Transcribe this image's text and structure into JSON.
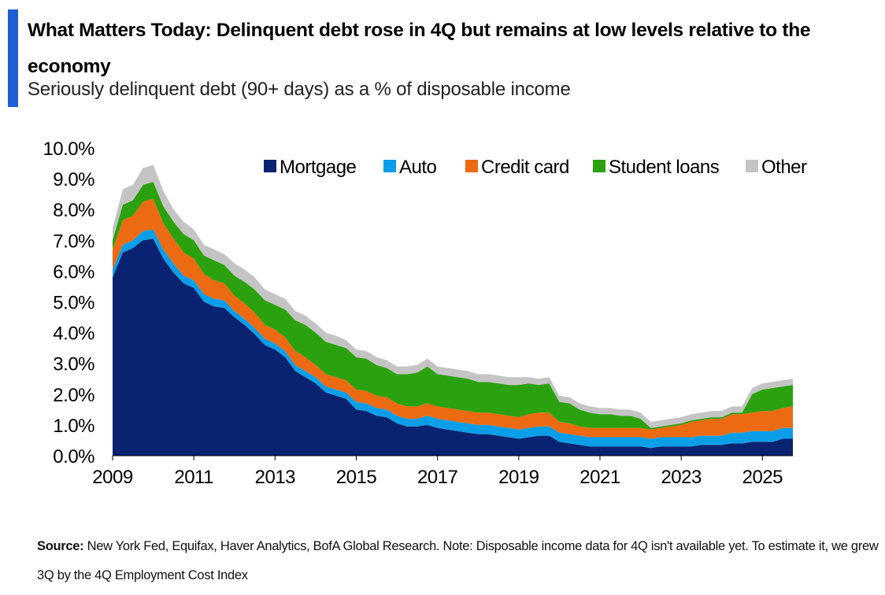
{
  "header": {
    "accent_color": "#1e5fd6",
    "title": "What Matters Today: Delinquent debt rose in 4Q but remains at low levels relative to the economy",
    "subtitle": "Seriously delinquent debt (90+ days) as a % of disposable income"
  },
  "footer": {
    "source_label": "Source:",
    "source_text": "New York Fed, Equifax, Haver Analytics, BofA Global Research. Note: Disposable income data for 4Q isn't available yet. To estimate it, we grew 3Q by the 4Q Employment Cost Index"
  },
  "chart_data": {
    "type": "area",
    "stacked": true,
    "title": "Seriously delinquent debt (90+ days) as a % of disposable income",
    "xlabel": "",
    "ylabel": "",
    "frequency": "quarterly",
    "x_start": 2009.0,
    "x_step": 0.25,
    "xlim": [
      2009.0,
      2025.75
    ],
    "ylim": [
      0,
      10
    ],
    "x_ticks": [
      2009,
      2011,
      2013,
      2015,
      2017,
      2019,
      2021,
      2023,
      2025
    ],
    "y_ticks": [
      "0.0%",
      "1.0%",
      "2.0%",
      "3.0%",
      "4.0%",
      "5.0%",
      "6.0%",
      "7.0%",
      "8.0%",
      "9.0%",
      "10.0%"
    ],
    "y_tick_values": [
      0,
      1,
      2,
      3,
      4,
      5,
      6,
      7,
      8,
      9,
      10
    ],
    "grid": false,
    "legend_position": "top-right",
    "series": [
      {
        "name": "Mortgage",
        "color": "#0a2370",
        "values": [
          5.8,
          6.6,
          6.75,
          7.0,
          7.05,
          6.4,
          5.95,
          5.6,
          5.45,
          5.0,
          4.85,
          4.8,
          4.5,
          4.25,
          3.95,
          3.6,
          3.45,
          3.2,
          2.75,
          2.55,
          2.35,
          2.05,
          1.95,
          1.85,
          1.5,
          1.45,
          1.3,
          1.25,
          1.05,
          0.95,
          0.95,
          1.0,
          0.9,
          0.85,
          0.8,
          0.75,
          0.7,
          0.7,
          0.65,
          0.6,
          0.55,
          0.6,
          0.65,
          0.65,
          0.45,
          0.4,
          0.35,
          0.3,
          0.3,
          0.3,
          0.3,
          0.3,
          0.3,
          0.25,
          0.3,
          0.3,
          0.3,
          0.3,
          0.35,
          0.35,
          0.35,
          0.4,
          0.4,
          0.45,
          0.45,
          0.45,
          0.55,
          0.55
        ]
      },
      {
        "name": "Auto",
        "color": "#0b9ee8",
        "values": [
          0.25,
          0.25,
          0.25,
          0.3,
          0.3,
          0.3,
          0.3,
          0.25,
          0.25,
          0.25,
          0.25,
          0.25,
          0.2,
          0.2,
          0.2,
          0.2,
          0.2,
          0.2,
          0.2,
          0.2,
          0.2,
          0.2,
          0.2,
          0.2,
          0.25,
          0.25,
          0.25,
          0.25,
          0.25,
          0.25,
          0.25,
          0.3,
          0.3,
          0.3,
          0.3,
          0.3,
          0.3,
          0.3,
          0.3,
          0.3,
          0.3,
          0.3,
          0.3,
          0.3,
          0.3,
          0.3,
          0.3,
          0.3,
          0.3,
          0.3,
          0.3,
          0.3,
          0.3,
          0.3,
          0.3,
          0.3,
          0.3,
          0.3,
          0.3,
          0.3,
          0.3,
          0.35,
          0.35,
          0.35,
          0.35,
          0.35,
          0.35,
          0.35
        ]
      },
      {
        "name": "Credit card",
        "color": "#ec6a12",
        "values": [
          0.65,
          0.8,
          0.8,
          0.95,
          1.0,
          0.85,
          0.8,
          0.75,
          0.7,
          0.65,
          0.6,
          0.55,
          0.5,
          0.5,
          0.5,
          0.45,
          0.45,
          0.45,
          0.45,
          0.45,
          0.4,
          0.4,
          0.4,
          0.4,
          0.4,
          0.4,
          0.4,
          0.4,
          0.4,
          0.4,
          0.4,
          0.4,
          0.4,
          0.4,
          0.4,
          0.4,
          0.4,
          0.4,
          0.4,
          0.4,
          0.4,
          0.45,
          0.45,
          0.45,
          0.35,
          0.35,
          0.3,
          0.3,
          0.3,
          0.3,
          0.3,
          0.3,
          0.3,
          0.3,
          0.3,
          0.35,
          0.4,
          0.5,
          0.5,
          0.55,
          0.55,
          0.6,
          0.6,
          0.6,
          0.65,
          0.65,
          0.65,
          0.7
        ]
      },
      {
        "name": "Student loans",
        "color": "#2ca10f",
        "values": [
          0.3,
          0.5,
          0.5,
          0.55,
          0.55,
          0.55,
          0.55,
          0.6,
          0.6,
          0.6,
          0.65,
          0.6,
          0.65,
          0.7,
          0.75,
          0.8,
          0.8,
          0.9,
          1.0,
          1.05,
          1.05,
          1.05,
          1.05,
          1.05,
          1.05,
          1.05,
          1.0,
          0.95,
          0.95,
          1.05,
          1.1,
          1.2,
          1.05,
          1.05,
          1.05,
          1.05,
          1.0,
          1.0,
          1.0,
          1.0,
          1.05,
          1.0,
          0.9,
          0.95,
          0.65,
          0.65,
          0.55,
          0.5,
          0.45,
          0.45,
          0.4,
          0.4,
          0.3,
          0.05,
          0.05,
          0.05,
          0.05,
          0.05,
          0.05,
          0.05,
          0.05,
          0.05,
          0.05,
          0.6,
          0.7,
          0.75,
          0.7,
          0.7
        ]
      },
      {
        "name": "Other",
        "color": "#c4c4c4",
        "values": [
          0.4,
          0.5,
          0.5,
          0.55,
          0.55,
          0.5,
          0.4,
          0.4,
          0.35,
          0.35,
          0.35,
          0.35,
          0.4,
          0.4,
          0.4,
          0.35,
          0.35,
          0.35,
          0.3,
          0.3,
          0.3,
          0.3,
          0.3,
          0.25,
          0.25,
          0.25,
          0.25,
          0.25,
          0.25,
          0.25,
          0.25,
          0.25,
          0.25,
          0.25,
          0.25,
          0.25,
          0.25,
          0.25,
          0.25,
          0.25,
          0.25,
          0.2,
          0.2,
          0.2,
          0.2,
          0.2,
          0.2,
          0.2,
          0.2,
          0.2,
          0.2,
          0.2,
          0.2,
          0.2,
          0.2,
          0.2,
          0.2,
          0.2,
          0.2,
          0.2,
          0.2,
          0.2,
          0.2,
          0.2,
          0.2,
          0.2,
          0.2,
          0.2
        ]
      }
    ]
  }
}
